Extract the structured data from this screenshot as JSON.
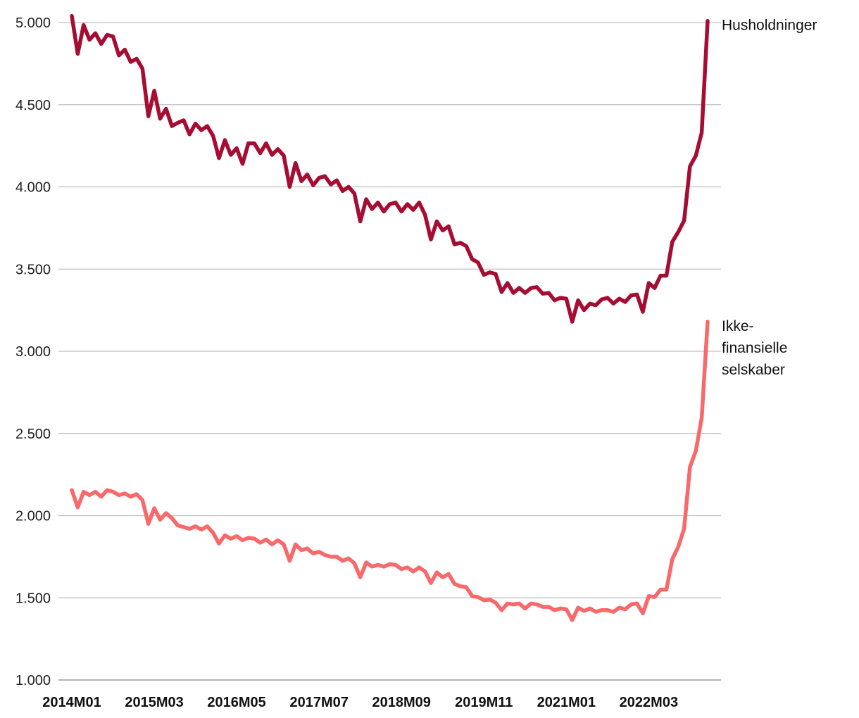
{
  "chart_data": {
    "type": "line",
    "title": "",
    "xlabel": "",
    "ylabel": "",
    "ylim": [
      1000,
      5000
    ],
    "yticks": [
      1000,
      1500,
      2000,
      2500,
      3000,
      3500,
      4000,
      4500,
      5000
    ],
    "ytick_labels": [
      "1.000",
      "1.500",
      "2.000",
      "2.500",
      "3.000",
      "3.500",
      "4.000",
      "4.500",
      "5.000"
    ],
    "xtick_labels": [
      "2014M01",
      "2015M03",
      "2016M05",
      "2017M07",
      "2018M09",
      "2019M11",
      "2021M01",
      "2022M03"
    ],
    "xtick_positions": [
      0,
      14,
      28,
      42,
      56,
      70,
      84,
      98
    ],
    "grid": true,
    "legend": "none",
    "series": [
      {
        "name": "Husholdninger",
        "label_lines": [
          "Husholdninger"
        ],
        "color": "#a50d32",
        "values": [
          5040,
          4810,
          4985,
          4895,
          4935,
          4870,
          4925,
          4915,
          4800,
          4835,
          4760,
          4780,
          4720,
          4430,
          4585,
          4415,
          4475,
          4370,
          4390,
          4405,
          4320,
          4385,
          4345,
          4370,
          4310,
          4175,
          4285,
          4195,
          4235,
          4140,
          4265,
          4265,
          4205,
          4265,
          4195,
          4230,
          4190,
          4000,
          4145,
          4035,
          4075,
          4010,
          4055,
          4065,
          4015,
          4040,
          3975,
          4000,
          3960,
          3790,
          3925,
          3865,
          3905,
          3850,
          3895,
          3905,
          3850,
          3895,
          3860,
          3905,
          3830,
          3680,
          3790,
          3735,
          3760,
          3650,
          3660,
          3640,
          3560,
          3540,
          3465,
          3480,
          3470,
          3360,
          3415,
          3355,
          3385,
          3355,
          3385,
          3390,
          3350,
          3355,
          3310,
          3325,
          3320,
          3180,
          3310,
          3250,
          3290,
          3280,
          3315,
          3325,
          3290,
          3320,
          3300,
          3340,
          3345,
          3240,
          3415,
          3385,
          3460,
          3460,
          3665,
          3725,
          3795,
          4125,
          4190,
          4330,
          5010
        ]
      },
      {
        "name": "Ikke-finansielle selskaber",
        "label_lines": [
          "Ikke-",
          "finansielle",
          "selskaber"
        ],
        "color": "#f8696b",
        "values": [
          2155,
          2050,
          2145,
          2125,
          2145,
          2115,
          2155,
          2145,
          2125,
          2135,
          2115,
          2130,
          2095,
          1950,
          2045,
          1975,
          2015,
          1985,
          1940,
          1930,
          1920,
          1935,
          1915,
          1935,
          1895,
          1830,
          1880,
          1860,
          1875,
          1850,
          1865,
          1860,
          1835,
          1855,
          1825,
          1850,
          1825,
          1725,
          1825,
          1790,
          1800,
          1770,
          1780,
          1760,
          1750,
          1750,
          1725,
          1740,
          1710,
          1625,
          1715,
          1690,
          1700,
          1690,
          1705,
          1700,
          1675,
          1685,
          1660,
          1685,
          1660,
          1590,
          1655,
          1625,
          1645,
          1585,
          1570,
          1565,
          1510,
          1505,
          1485,
          1490,
          1470,
          1425,
          1465,
          1460,
          1465,
          1435,
          1465,
          1460,
          1445,
          1445,
          1425,
          1435,
          1430,
          1365,
          1440,
          1420,
          1435,
          1415,
          1425,
          1425,
          1415,
          1440,
          1430,
          1460,
          1465,
          1405,
          1510,
          1505,
          1550,
          1550,
          1735,
          1810,
          1920,
          2295,
          2395,
          2595,
          3180
        ]
      }
    ]
  }
}
